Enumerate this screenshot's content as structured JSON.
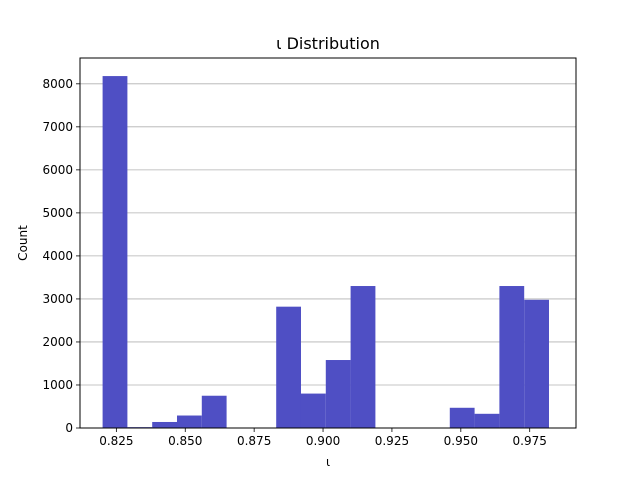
{
  "chart_data": {
    "type": "bar",
    "title": "ι Distribution",
    "xlabel": "ι",
    "ylabel": "Count",
    "xlim": [
      0.8118,
      0.9918
    ],
    "ylim": [
      0,
      8600
    ],
    "xticks": [
      0.825,
      0.85,
      0.875,
      0.9,
      0.925,
      0.95,
      0.975
    ],
    "xtick_labels": [
      "0.825",
      "0.850",
      "0.875",
      "0.900",
      "0.925",
      "0.950",
      "0.975"
    ],
    "yticks": [
      0,
      1000,
      2000,
      3000,
      4000,
      5000,
      6000,
      7000,
      8000
    ],
    "ytick_labels": [
      "0",
      "1000",
      "2000",
      "3000",
      "4000",
      "5000",
      "6000",
      "7000",
      "8000"
    ],
    "grid": "y",
    "bar_color": "#4f4fc4",
    "bins": [
      {
        "x0": 0.82,
        "x1": 0.829,
        "count": 8180
      },
      {
        "x0": 0.829,
        "x1": 0.838,
        "count": 20
      },
      {
        "x0": 0.838,
        "x1": 0.847,
        "count": 140
      },
      {
        "x0": 0.847,
        "x1": 0.856,
        "count": 290
      },
      {
        "x0": 0.856,
        "x1": 0.865,
        "count": 750
      },
      {
        "x0": 0.865,
        "x1": 0.874,
        "count": 0
      },
      {
        "x0": 0.874,
        "x1": 0.883,
        "count": 0
      },
      {
        "x0": 0.883,
        "x1": 0.892,
        "count": 2820
      },
      {
        "x0": 0.892,
        "x1": 0.901,
        "count": 800
      },
      {
        "x0": 0.901,
        "x1": 0.91,
        "count": 1580
      },
      {
        "x0": 0.91,
        "x1": 0.919,
        "count": 3300
      },
      {
        "x0": 0.919,
        "x1": 0.928,
        "count": 0
      },
      {
        "x0": 0.928,
        "x1": 0.937,
        "count": 0
      },
      {
        "x0": 0.937,
        "x1": 0.946,
        "count": 0
      },
      {
        "x0": 0.946,
        "x1": 0.955,
        "count": 470
      },
      {
        "x0": 0.955,
        "x1": 0.964,
        "count": 330
      },
      {
        "x0": 0.964,
        "x1": 0.973,
        "count": 3300
      },
      {
        "x0": 0.973,
        "x1": 0.982,
        "count": 2980
      }
    ]
  }
}
